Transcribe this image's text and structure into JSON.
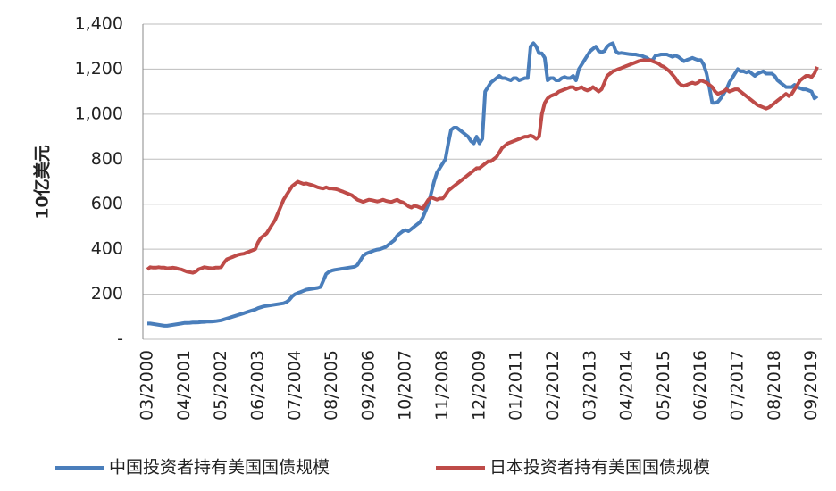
{
  "chart_data": {
    "type": "line",
    "y_label": "10亿美元",
    "categories": [
      "03/2000",
      null,
      null,
      null,
      null,
      null,
      null,
      null,
      null,
      null,
      null,
      null,
      null,
      "04/2001",
      null,
      null,
      null,
      null,
      null,
      null,
      null,
      null,
      null,
      null,
      null,
      null,
      "05/2002",
      null,
      null,
      null,
      null,
      null,
      null,
      null,
      null,
      null,
      null,
      null,
      null,
      "06/2003",
      null,
      null,
      null,
      null,
      null,
      null,
      null,
      null,
      null,
      null,
      null,
      null,
      "07/2004",
      null,
      null,
      null,
      null,
      null,
      null,
      null,
      null,
      null,
      null,
      null,
      null,
      "08/2005",
      null,
      null,
      null,
      null,
      null,
      null,
      null,
      null,
      null,
      null,
      null,
      null,
      "09/2006",
      null,
      null,
      null,
      null,
      null,
      null,
      null,
      null,
      null,
      null,
      null,
      null,
      "10/2007",
      null,
      null,
      null,
      null,
      null,
      null,
      null,
      null,
      null,
      null,
      null,
      null,
      "11/2008",
      null,
      null,
      null,
      null,
      null,
      null,
      null,
      null,
      null,
      null,
      null,
      null,
      "12/2009",
      null,
      null,
      null,
      null,
      null,
      null,
      null,
      null,
      null,
      null,
      null,
      null,
      "01/2011",
      null,
      null,
      null,
      null,
      null,
      null,
      null,
      null,
      null,
      null,
      null,
      null,
      "02/2012",
      null,
      null,
      null,
      null,
      null,
      null,
      null,
      null,
      null,
      null,
      null,
      null,
      "03/2013",
      null,
      null,
      null,
      null,
      null,
      null,
      null,
      null,
      null,
      null,
      null,
      null,
      "04/2014",
      null,
      null,
      null,
      null,
      null,
      null,
      null,
      null,
      null,
      null,
      null,
      null,
      "05/2015",
      null,
      null,
      null,
      null,
      null,
      null,
      null,
      null,
      null,
      null,
      null,
      null,
      "06/2016",
      null,
      null,
      null,
      null,
      null,
      null,
      null,
      null,
      null,
      null,
      null,
      null,
      "07/2017",
      null,
      null,
      null,
      null,
      null,
      null,
      null,
      null,
      null,
      null,
      null,
      null,
      "08/2018",
      null,
      null,
      null,
      null,
      null,
      null,
      null,
      null,
      null,
      null,
      null,
      null,
      "09/2019",
      null,
      null
    ],
    "series": [
      {
        "name": "中国投资者持有美国国债规模",
        "color": "#4a7ebb",
        "values": [
          70,
          70,
          68,
          66,
          64,
          62,
          60,
          60,
          62,
          64,
          66,
          68,
          70,
          72,
          72,
          73,
          74,
          74,
          75,
          76,
          77,
          78,
          78,
          79,
          80,
          82,
          84,
          88,
          92,
          96,
          100,
          104,
          108,
          112,
          116,
          120,
          124,
          128,
          132,
          138,
          142,
          146,
          148,
          150,
          152,
          154,
          156,
          158,
          160,
          165,
          175,
          190,
          200,
          205,
          210,
          215,
          220,
          222,
          224,
          226,
          228,
          232,
          260,
          290,
          300,
          305,
          308,
          310,
          312,
          314,
          316,
          318,
          320,
          322,
          330,
          350,
          370,
          380,
          385,
          390,
          395,
          398,
          400,
          405,
          410,
          420,
          430,
          440,
          460,
          470,
          480,
          485,
          480,
          490,
          500,
          510,
          520,
          540,
          570,
          600,
          650,
          700,
          740,
          760,
          780,
          800,
          870,
          930,
          940,
          940,
          930,
          920,
          910,
          900,
          880,
          870,
          900,
          870,
          890,
          1100,
          1120,
          1140,
          1150,
          1160,
          1170,
          1160,
          1160,
          1155,
          1150,
          1160,
          1160,
          1150,
          1155,
          1160,
          1160,
          1300,
          1315,
          1300,
          1270,
          1270,
          1250,
          1150,
          1160,
          1160,
          1150,
          1150,
          1160,
          1165,
          1160,
          1160,
          1170,
          1150,
          1200,
          1220,
          1240,
          1260,
          1280,
          1290,
          1300,
          1280,
          1275,
          1280,
          1300,
          1310,
          1315,
          1280,
          1270,
          1272,
          1270,
          1268,
          1266,
          1265,
          1265,
          1262,
          1260,
          1255,
          1250,
          1240,
          1240,
          1260,
          1262,
          1265,
          1265,
          1265,
          1260,
          1255,
          1260,
          1255,
          1245,
          1235,
          1240,
          1245,
          1250,
          1245,
          1240,
          1240,
          1220,
          1180,
          1120,
          1050,
          1050,
          1055,
          1070,
          1090,
          1110,
          1140,
          1160,
          1180,
          1200,
          1190,
          1190,
          1185,
          1190,
          1180,
          1170,
          1180,
          1185,
          1190,
          1180,
          1180,
          1180,
          1170,
          1150,
          1140,
          1130,
          1120,
          1120,
          1120,
          1130,
          1120,
          1115,
          1110,
          1110,
          1105,
          1100,
          1070,
          1080
        ]
      },
      {
        "name": "日本投资者持有美国国债规模",
        "color": "#be4b48",
        "values": [
          310,
          320,
          318,
          318,
          320,
          318,
          318,
          315,
          316,
          318,
          316,
          312,
          310,
          305,
          300,
          298,
          295,
          300,
          310,
          315,
          320,
          318,
          316,
          315,
          318,
          318,
          320,
          340,
          355,
          360,
          365,
          370,
          375,
          378,
          380,
          385,
          390,
          395,
          400,
          430,
          450,
          460,
          470,
          490,
          510,
          530,
          560,
          590,
          620,
          640,
          660,
          680,
          690,
          700,
          695,
          690,
          692,
          688,
          685,
          680,
          675,
          672,
          670,
          675,
          670,
          670,
          668,
          665,
          660,
          655,
          650,
          645,
          640,
          630,
          620,
          615,
          610,
          615,
          620,
          618,
          615,
          612,
          615,
          620,
          615,
          612,
          610,
          615,
          620,
          612,
          608,
          600,
          590,
          585,
          592,
          590,
          585,
          580,
          600,
          620,
          630,
          625,
          620,
          625,
          625,
          640,
          660,
          670,
          680,
          690,
          700,
          710,
          720,
          730,
          740,
          750,
          760,
          760,
          770,
          780,
          790,
          790,
          800,
          810,
          830,
          850,
          860,
          870,
          875,
          880,
          885,
          890,
          895,
          900,
          900,
          905,
          900,
          890,
          900,
          1000,
          1050,
          1070,
          1080,
          1085,
          1090,
          1100,
          1105,
          1110,
          1115,
          1120,
          1120,
          1110,
          1115,
          1120,
          1110,
          1105,
          1110,
          1120,
          1110,
          1100,
          1110,
          1140,
          1170,
          1180,
          1190,
          1195,
          1200,
          1205,
          1210,
          1215,
          1220,
          1225,
          1230,
          1235,
          1238,
          1240,
          1238,
          1240,
          1235,
          1230,
          1225,
          1215,
          1210,
          1200,
          1190,
          1175,
          1160,
          1140,
          1130,
          1125,
          1130,
          1135,
          1140,
          1135,
          1140,
          1150,
          1145,
          1140,
          1130,
          1120,
          1100,
          1090,
          1095,
          1100,
          1110,
          1100,
          1105,
          1110,
          1110,
          1100,
          1090,
          1080,
          1070,
          1060,
          1050,
          1040,
          1035,
          1030,
          1025,
          1030,
          1040,
          1050,
          1060,
          1070,
          1080,
          1090,
          1080,
          1090,
          1110,
          1130,
          1150,
          1160,
          1170,
          1170,
          1165,
          1180,
          1210
        ]
      }
    ],
    "ylim": [
      0,
      1400
    ],
    "yticks": [
      {
        "value": 0,
        "label": "-"
      },
      200,
      400,
      600,
      800,
      {
        "value": 1000,
        "label": "1,000"
      },
      {
        "value": 1200,
        "label": "1,200"
      },
      {
        "value": 1400,
        "label": "1,400"
      }
    ],
    "grid": true,
    "legend": "bottom"
  }
}
